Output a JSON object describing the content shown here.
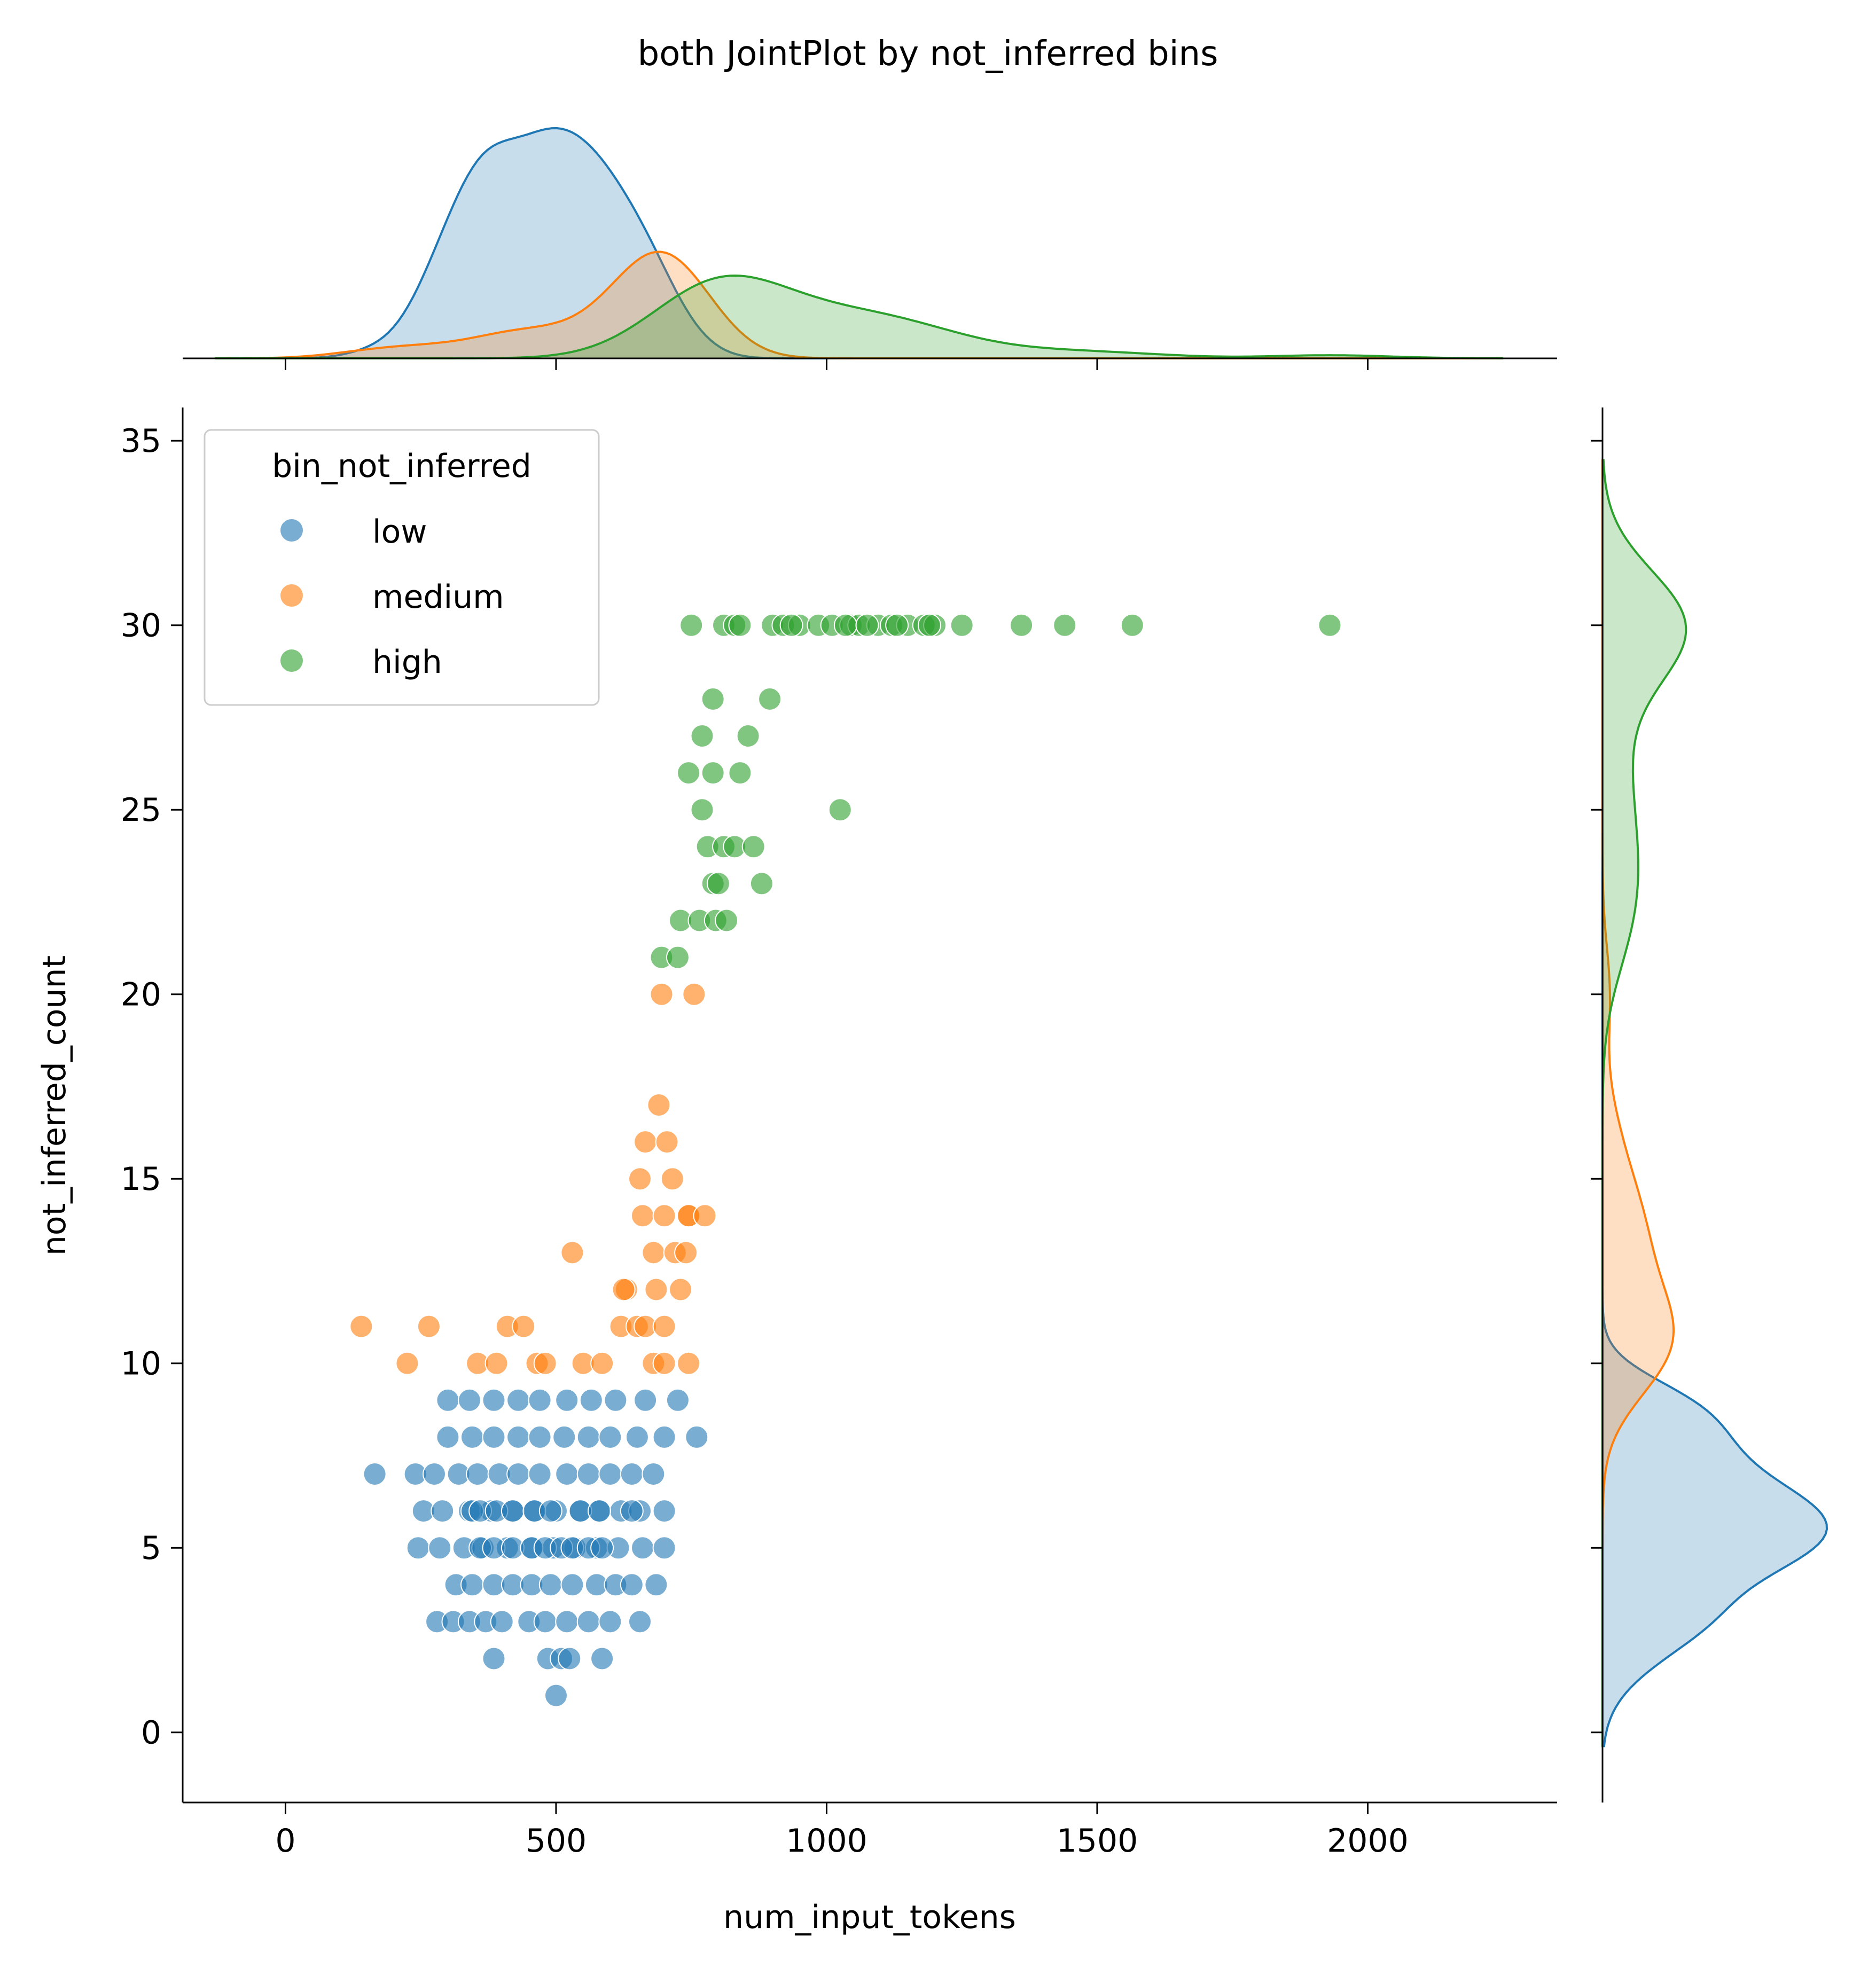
{
  "chart_data": {
    "type": "scatter",
    "title": "both JointPlot by not_inferred bins",
    "xlabel": "num_input_tokens",
    "ylabel": "not_inferred_count",
    "xlim": [
      -190,
      2350
    ],
    "ylim": [
      -1.9,
      35.9
    ],
    "xticks": [
      0,
      500,
      1000,
      1500,
      2000
    ],
    "yticks": [
      0,
      5,
      10,
      15,
      20,
      25,
      30,
      35
    ],
    "grid": false,
    "legend": {
      "title": "bin_not_inferred",
      "placement": "top-left"
    },
    "marginals": {
      "top": "kde of num_input_tokens by bin",
      "right": "kde of not_inferred_count by bin"
    },
    "colors": {
      "low": "#1f77b4",
      "medium": "#ff7f0e",
      "high": "#2ca02c"
    },
    "series": [
      {
        "name": "low",
        "x": [
          165,
          240,
          275,
          320,
          355,
          395,
          430,
          470,
          520,
          560,
          600,
          640,
          680,
          255,
          290,
          340,
          380,
          420,
          460,
          500,
          545,
          580,
          620,
          655,
          700,
          245,
          285,
          330,
          365,
          410,
          455,
          495,
          535,
          575,
          615,
          660,
          700,
          300,
          345,
          385,
          430,
          470,
          515,
          560,
          600,
          650,
          700,
          300,
          340,
          385,
          430,
          470,
          520,
          565,
          610,
          665,
          725,
          760,
          315,
          345,
          385,
          420,
          455,
          490,
          530,
          575,
          610,
          640,
          685,
          280,
          310,
          340,
          370,
          400,
          450,
          480,
          520,
          560,
          600,
          655,
          360,
          385,
          420,
          455,
          480,
          510,
          530,
          560,
          585,
          345,
          360,
          390,
          420,
          460,
          490,
          545,
          580,
          640,
          385,
          485,
          510,
          525,
          585,
          500
        ],
        "y": [
          7,
          7,
          7,
          7,
          7,
          7,
          7,
          7,
          7,
          7,
          7,
          7,
          7,
          6,
          6,
          6,
          6,
          6,
          6,
          6,
          6,
          6,
          6,
          6,
          6,
          5,
          5,
          5,
          5,
          5,
          5,
          5,
          5,
          5,
          5,
          5,
          5,
          8,
          8,
          8,
          8,
          8,
          8,
          8,
          8,
          8,
          8,
          9,
          9,
          9,
          9,
          9,
          9,
          9,
          9,
          9,
          9,
          8,
          4,
          4,
          4,
          4,
          4,
          4,
          4,
          4,
          4,
          4,
          4,
          3,
          3,
          3,
          3,
          3,
          3,
          3,
          3,
          3,
          3,
          3,
          5,
          5,
          5,
          5,
          5,
          5,
          5,
          5,
          5,
          6,
          6,
          6,
          6,
          6,
          6,
          6,
          6,
          6,
          2,
          2,
          2,
          2,
          2,
          1
        ]
      },
      {
        "name": "medium",
        "x": [
          140,
          265,
          225,
          355,
          390,
          410,
          440,
          465,
          480,
          530,
          550,
          585,
          620,
          650,
          680,
          700,
          745,
          630,
          665,
          700,
          625,
          685,
          730,
          680,
          720,
          740,
          745,
          660,
          700,
          655,
          715,
          665,
          705,
          690,
          745,
          775,
          695,
          755
        ],
        "y": [
          11,
          11,
          10,
          10,
          10,
          11,
          11,
          10,
          10,
          13,
          10,
          10,
          11,
          11,
          10,
          10,
          10,
          12,
          11,
          11,
          12,
          12,
          12,
          13,
          13,
          13,
          14,
          14,
          14,
          15,
          15,
          16,
          16,
          17,
          14,
          14,
          20,
          20
        ]
      },
      {
        "name": "high",
        "x": [
          750,
          810,
          830,
          840,
          900,
          920,
          950,
          985,
          1010,
          1045,
          1060,
          1095,
          1120,
          1150,
          1180,
          1200,
          1250,
          1360,
          1440,
          1565,
          1930,
          935,
          1035,
          1075,
          1130,
          1190,
          790,
          895,
          770,
          855,
          745,
          790,
          840,
          770,
          1025,
          780,
          810,
          830,
          865,
          790,
          800,
          880,
          730,
          765,
          795,
          815,
          695,
          725
        ],
        "y": [
          30,
          30,
          30,
          30,
          30,
          30,
          30,
          30,
          30,
          30,
          30,
          30,
          30,
          30,
          30,
          30,
          30,
          30,
          30,
          30,
          30,
          30,
          30,
          30,
          30,
          30,
          28,
          28,
          27,
          27,
          26,
          26,
          26,
          25,
          25,
          24,
          24,
          24,
          24,
          23,
          23,
          23,
          22,
          22,
          22,
          22,
          21,
          21
        ]
      }
    ]
  }
}
